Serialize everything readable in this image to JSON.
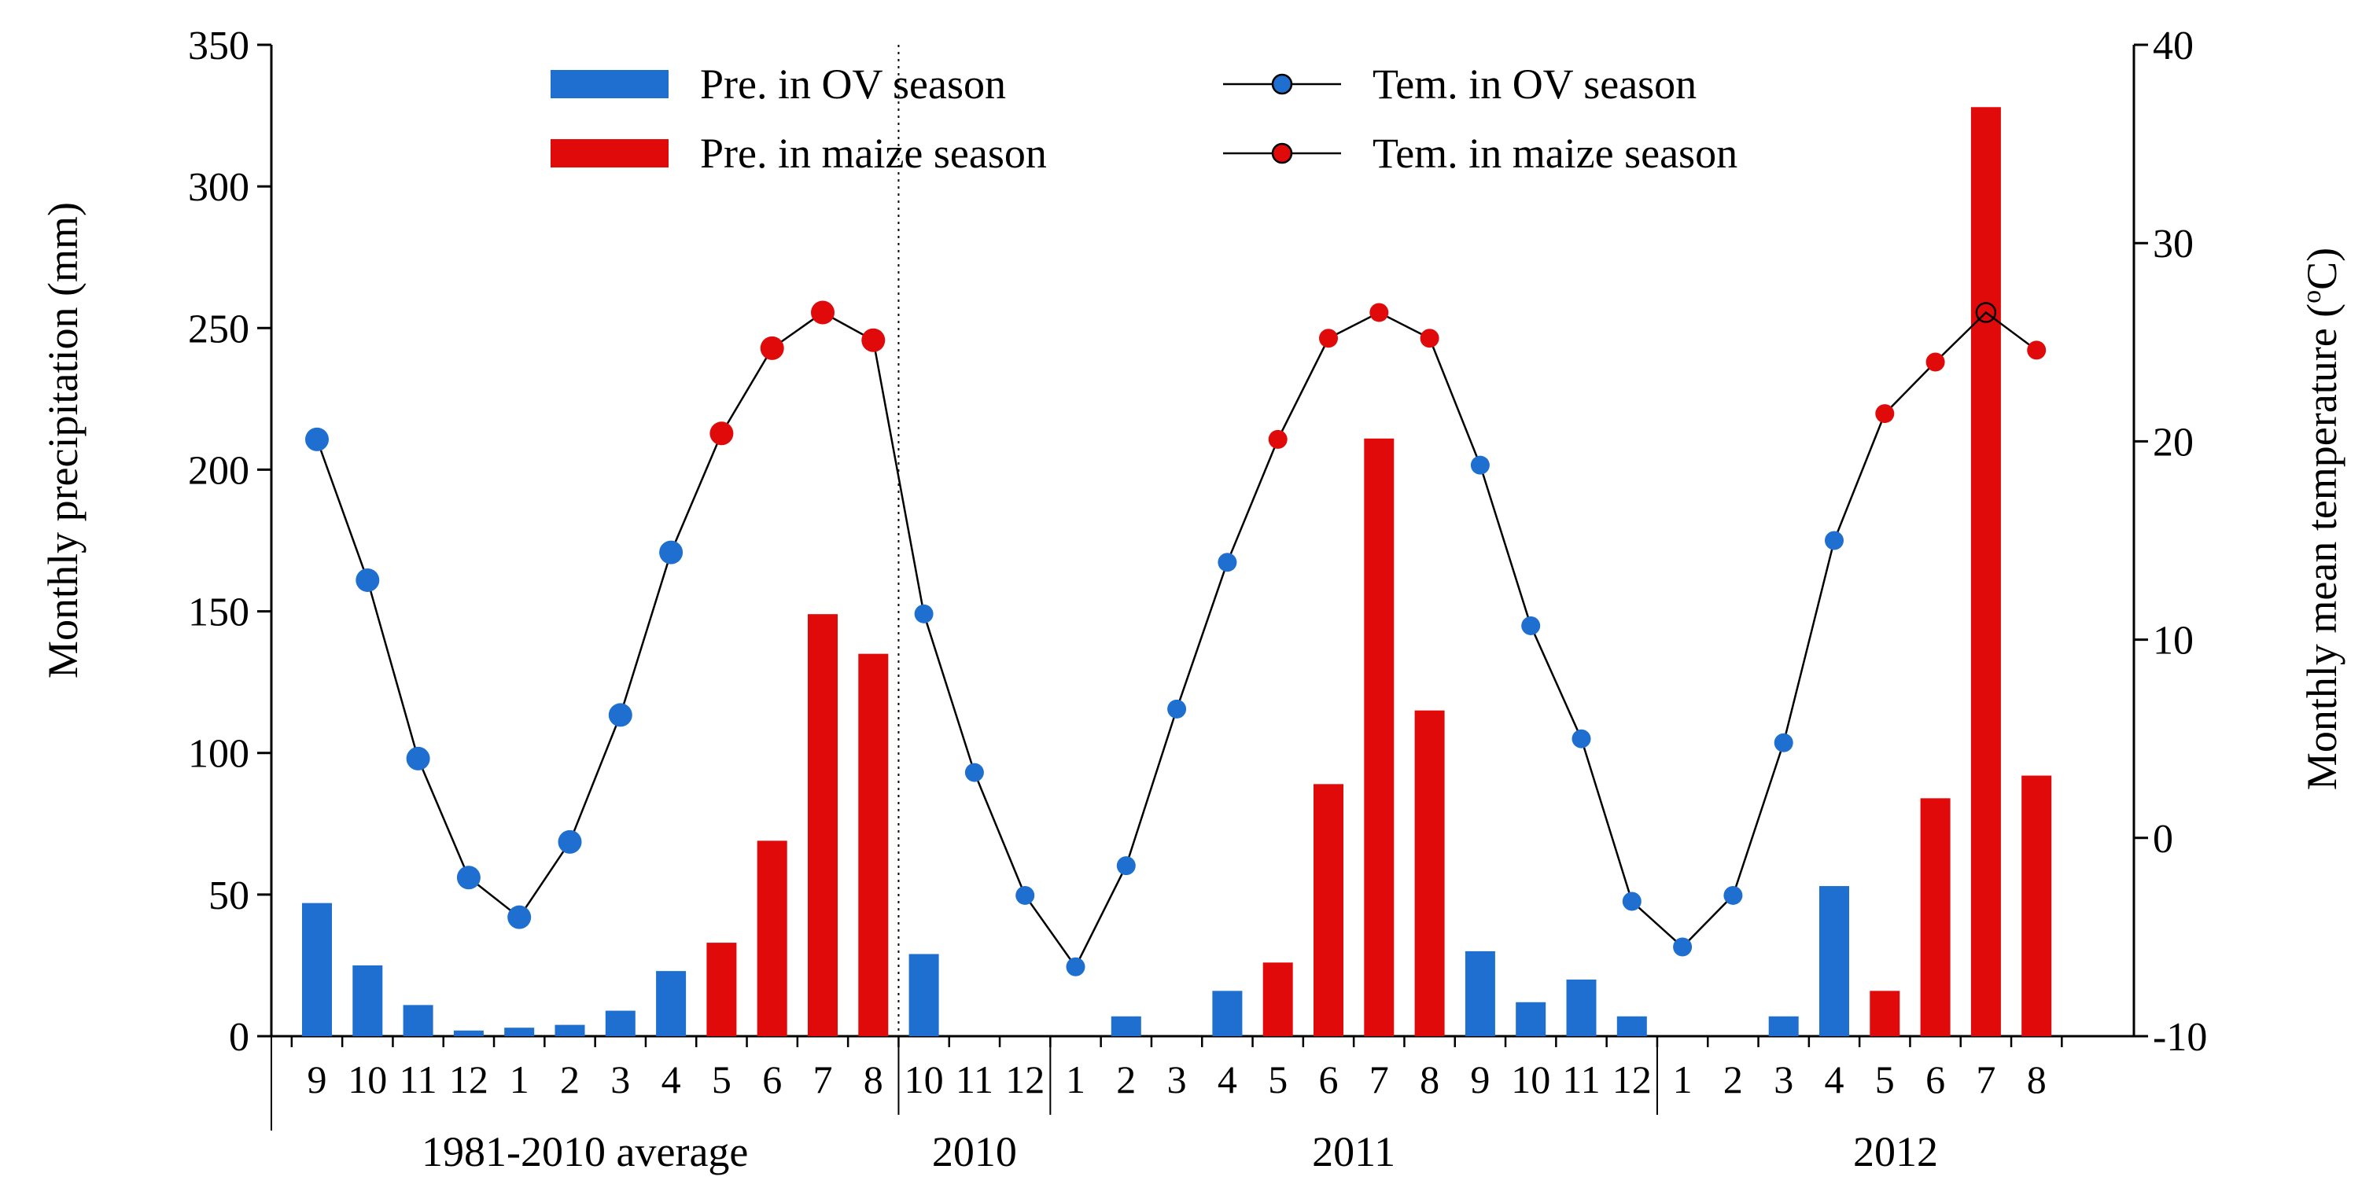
{
  "chart_data": {
    "type": "bar+line",
    "ylabel_left": "Monthly precipitation (mm)",
    "ylabel_right_prefix": "Monthly mean temperature (",
    "ylabel_right_sup": "o",
    "ylabel_right_suffix": "C)",
    "ylim_left": [
      0,
      350
    ],
    "yticks_left": [
      0,
      50,
      100,
      150,
      200,
      250,
      300,
      350
    ],
    "ylim_right": [
      -10,
      40
    ],
    "yticks_right": [
      -10,
      0,
      10,
      20,
      30,
      40
    ],
    "grid": false,
    "legend_position": "top",
    "legend": [
      {
        "label": "Pre. in OV season",
        "kind": "bar",
        "color": "#1f6fd0"
      },
      {
        "label": "Pre. in maize season",
        "kind": "bar",
        "color": "#e00a0a"
      },
      {
        "label": "Tem. in OV season",
        "kind": "line-marker",
        "color": "#1f6fd0"
      },
      {
        "label": "Tem. in maize season",
        "kind": "line-marker",
        "color": "#e00a0a"
      }
    ],
    "groups": [
      {
        "label": "1981-2010 average",
        "months": [
          "9",
          "10",
          "11",
          "12",
          "1",
          "2",
          "3",
          "4",
          "5",
          "6",
          "7",
          "8"
        ],
        "precipitation": [
          47,
          25,
          11,
          2,
          3,
          4,
          9,
          23,
          33,
          69,
          149,
          135
        ],
        "temperature": [
          20.1,
          13.0,
          4.0,
          -2.0,
          -4.0,
          -0.2,
          6.2,
          14.4,
          20.4,
          24.7,
          26.5,
          25.1
        ],
        "season": [
          "ov",
          "ov",
          "ov",
          "ov",
          "ov",
          "ov",
          "ov",
          "ov",
          "maize",
          "maize",
          "maize",
          "maize"
        ]
      },
      {
        "label": "2010",
        "months": [
          "10",
          "11",
          "12"
        ],
        "precipitation": [
          29,
          0,
          0
        ],
        "temperature": [
          11.3,
          3.3,
          -2.9
        ],
        "season": [
          "ov",
          "ov",
          "ov"
        ]
      },
      {
        "label": "2011",
        "months": [
          "1",
          "2",
          "3",
          "4",
          "5",
          "6",
          "7",
          "8",
          "9",
          "10",
          "11",
          "12"
        ],
        "precipitation": [
          0,
          7,
          0,
          16,
          26,
          89,
          211,
          115,
          30,
          12,
          20,
          7
        ],
        "temperature": [
          -6.5,
          -1.4,
          6.5,
          13.9,
          20.1,
          25.2,
          26.5,
          25.2,
          18.8,
          10.7,
          5.0,
          -3.2
        ],
        "season": [
          "ov",
          "ov",
          "ov",
          "ov",
          "maize",
          "maize",
          "maize",
          "maize",
          "ov",
          "ov",
          "ov",
          "ov"
        ]
      },
      {
        "label": "2012",
        "months": [
          "1",
          "2",
          "3",
          "4",
          "5",
          "6",
          "7",
          "8"
        ],
        "precipitation": [
          0,
          0,
          7,
          53,
          16,
          84,
          328,
          92
        ],
        "temperature": [
          -5.5,
          -2.9,
          4.8,
          15.0,
          21.4,
          24.0,
          26.5,
          24.6
        ],
        "season": [
          "ov",
          "ov",
          "ov",
          "ov",
          "maize",
          "maize",
          "maize",
          "maize"
        ]
      }
    ],
    "open_marker": {
      "group": 3,
      "index": 6
    }
  }
}
